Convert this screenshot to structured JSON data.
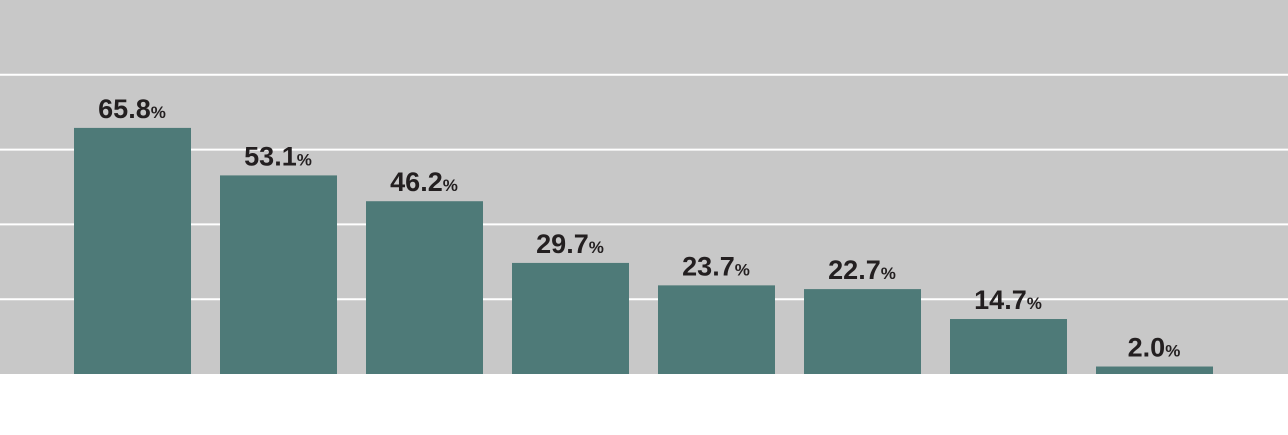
{
  "chart_data": {
    "type": "bar",
    "categories": [
      null,
      null,
      null,
      null,
      null,
      null,
      null,
      null
    ],
    "values": [
      65.8,
      53.1,
      46.2,
      29.7,
      23.7,
      22.7,
      14.7,
      2.0
    ],
    "value_labels": [
      "65.8%",
      "53.1%",
      "46.2%",
      "29.7%",
      "23.7%",
      "22.7%",
      "14.7%",
      "2.0%"
    ],
    "color": "#4e7a78",
    "ylim": [
      0,
      100
    ],
    "yticks": [
      20,
      40,
      60,
      80
    ],
    "grid": true
  }
}
